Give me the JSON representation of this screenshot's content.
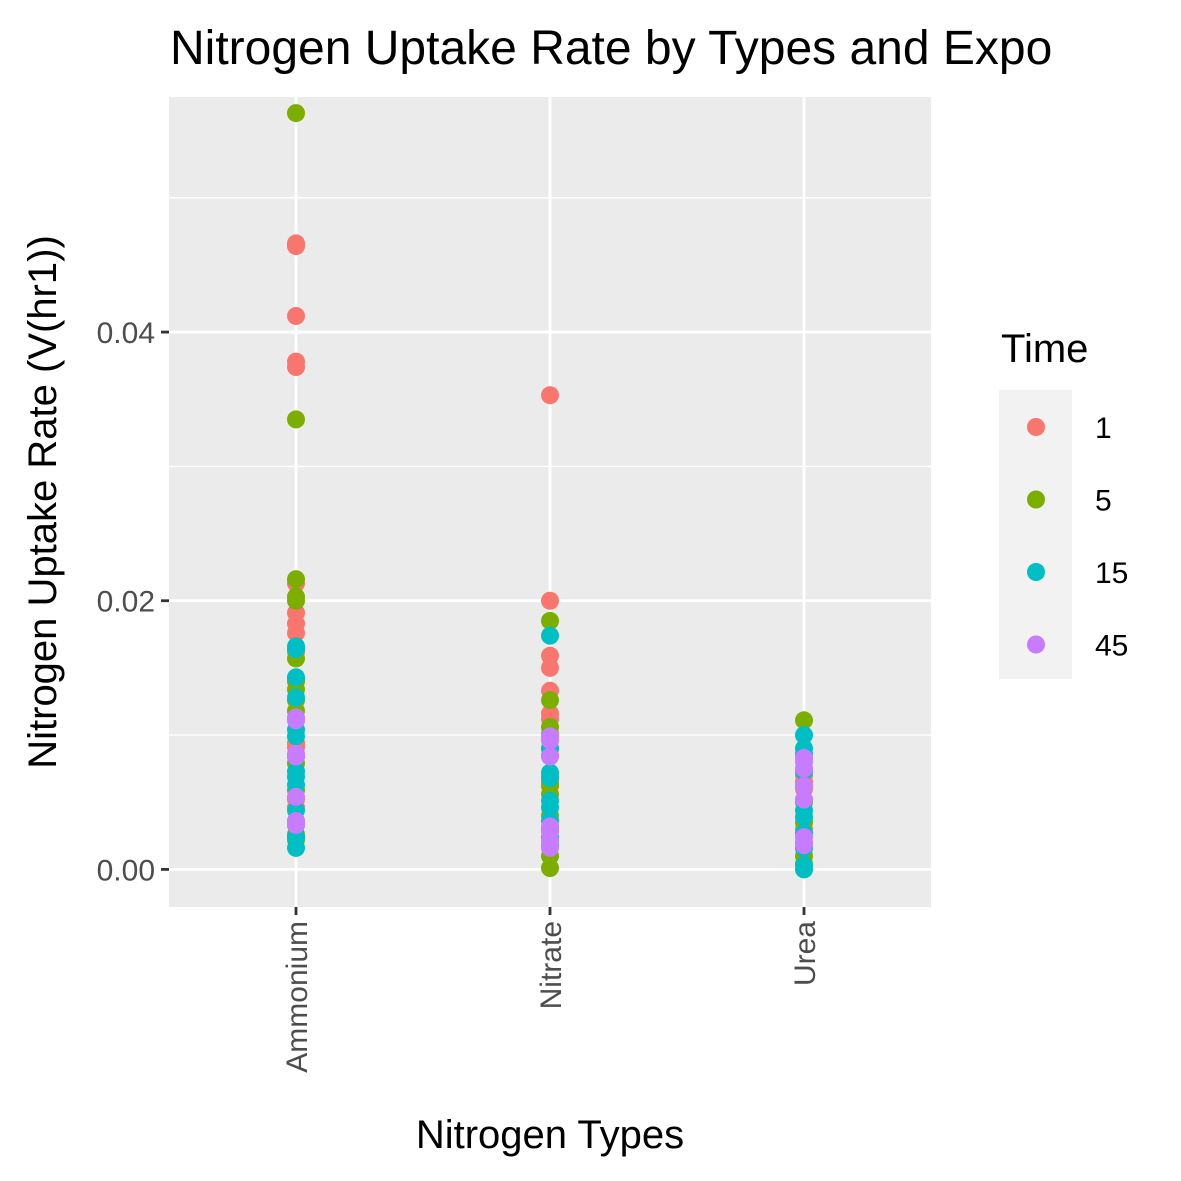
{
  "chart_data": {
    "type": "scatter",
    "title": "Nitrogen Uptake Rate by Types and Expo",
    "xlabel": "Nitrogen Types",
    "ylabel": "Nitrogen Uptake Rate (V(hr1))",
    "categories": [
      "Ammonium",
      "Nitrate",
      "Urea"
    ],
    "y_ticks": [
      0.0,
      0.02,
      0.04
    ],
    "y_tick_labels": [
      "0.00",
      "0.02",
      "0.04"
    ],
    "ylim": [
      -0.0028,
      0.0575
    ],
    "grid": true,
    "legend": {
      "title": "Time",
      "position": "right",
      "entries": [
        "1",
        "5",
        "15",
        "45"
      ]
    },
    "series": [
      {
        "name": "1",
        "color": "#F8766D",
        "points": [
          {
            "x": "Ammonium",
            "y": 0.0466
          },
          {
            "x": "Ammonium",
            "y": 0.0464
          },
          {
            "x": "Ammonium",
            "y": 0.0412
          },
          {
            "x": "Ammonium",
            "y": 0.0378
          },
          {
            "x": "Ammonium",
            "y": 0.0374
          },
          {
            "x": "Ammonium",
            "y": 0.0213
          },
          {
            "x": "Ammonium",
            "y": 0.0191
          },
          {
            "x": "Ammonium",
            "y": 0.0183
          },
          {
            "x": "Ammonium",
            "y": 0.0176
          },
          {
            "x": "Ammonium",
            "y": 0.0162
          },
          {
            "x": "Ammonium",
            "y": 0.0142
          },
          {
            "x": "Ammonium",
            "y": 0.0094
          },
          {
            "x": "Ammonium",
            "y": 0.0091
          },
          {
            "x": "Ammonium",
            "y": 0.0052
          },
          {
            "x": "Ammonium",
            "y": 0.0046
          },
          {
            "x": "Nitrate",
            "y": 0.0353
          },
          {
            "x": "Nitrate",
            "y": 0.02
          },
          {
            "x": "Nitrate",
            "y": 0.0159
          },
          {
            "x": "Nitrate",
            "y": 0.015
          },
          {
            "x": "Nitrate",
            "y": 0.0133
          },
          {
            "x": "Nitrate",
            "y": 0.0116
          },
          {
            "x": "Nitrate",
            "y": 0.0112
          },
          {
            "x": "Nitrate",
            "y": 0.0101
          },
          {
            "x": "Nitrate",
            "y": 0.009
          },
          {
            "x": "Nitrate",
            "y": 0.0085
          },
          {
            "x": "Nitrate",
            "y": 0.0065
          },
          {
            "x": "Nitrate",
            "y": 0.0062
          },
          {
            "x": "Urea",
            "y": 0.007
          },
          {
            "x": "Urea",
            "y": 0.0065
          },
          {
            "x": "Urea",
            "y": 0.006
          },
          {
            "x": "Urea",
            "y": 0.0052
          },
          {
            "x": "Urea",
            "y": 0.003
          },
          {
            "x": "Urea",
            "y": 0.002
          }
        ]
      },
      {
        "name": "5",
        "color": "#7CAE00",
        "points": [
          {
            "x": "Ammonium",
            "y": 0.0563
          },
          {
            "x": "Ammonium",
            "y": 0.0335
          },
          {
            "x": "Ammonium",
            "y": 0.0216
          },
          {
            "x": "Ammonium",
            "y": 0.0203
          },
          {
            "x": "Ammonium",
            "y": 0.02
          },
          {
            "x": "Ammonium",
            "y": 0.0157
          },
          {
            "x": "Ammonium",
            "y": 0.014
          },
          {
            "x": "Ammonium",
            "y": 0.0134
          },
          {
            "x": "Ammonium",
            "y": 0.0126
          },
          {
            "x": "Ammonium",
            "y": 0.0118
          },
          {
            "x": "Ammonium",
            "y": 0.0079
          },
          {
            "x": "Ammonium",
            "y": 0.0059
          },
          {
            "x": "Ammonium",
            "y": 0.0036
          },
          {
            "x": "Ammonium",
            "y": 0.0026
          },
          {
            "x": "Ammonium",
            "y": 0.0022
          },
          {
            "x": "Nitrate",
            "y": 0.0185
          },
          {
            "x": "Nitrate",
            "y": 0.0126
          },
          {
            "x": "Nitrate",
            "y": 0.0106
          },
          {
            "x": "Nitrate",
            "y": 0.0069
          },
          {
            "x": "Nitrate",
            "y": 0.0063
          },
          {
            "x": "Nitrate",
            "y": 0.0056
          },
          {
            "x": "Nitrate",
            "y": 0.004
          },
          {
            "x": "Nitrate",
            "y": 0.003
          },
          {
            "x": "Nitrate",
            "y": 0.001
          },
          {
            "x": "Nitrate",
            "y": 0.0001
          },
          {
            "x": "Urea",
            "y": 0.0111
          },
          {
            "x": "Urea",
            "y": 0.005
          },
          {
            "x": "Urea",
            "y": 0.0035
          },
          {
            "x": "Urea",
            "y": 0.0016
          },
          {
            "x": "Urea",
            "y": 0.001
          },
          {
            "x": "Urea",
            "y": 0.0004
          }
        ]
      },
      {
        "name": "15",
        "color": "#00BFC4",
        "points": [
          {
            "x": "Ammonium",
            "y": 0.0166
          },
          {
            "x": "Ammonium",
            "y": 0.0164
          },
          {
            "x": "Ammonium",
            "y": 0.0143
          },
          {
            "x": "Ammonium",
            "y": 0.0128
          },
          {
            "x": "Ammonium",
            "y": 0.0104
          },
          {
            "x": "Ammonium",
            "y": 0.0099
          },
          {
            "x": "Ammonium",
            "y": 0.0084
          },
          {
            "x": "Ammonium",
            "y": 0.0073
          },
          {
            "x": "Ammonium",
            "y": 0.0069
          },
          {
            "x": "Ammonium",
            "y": 0.0063
          },
          {
            "x": "Ammonium",
            "y": 0.0044
          },
          {
            "x": "Ammonium",
            "y": 0.0033
          },
          {
            "x": "Ammonium",
            "y": 0.0024
          },
          {
            "x": "Ammonium",
            "y": 0.0016
          },
          {
            "x": "Nitrate",
            "y": 0.0174
          },
          {
            "x": "Nitrate",
            "y": 0.009
          },
          {
            "x": "Nitrate",
            "y": 0.0072
          },
          {
            "x": "Nitrate",
            "y": 0.0068
          },
          {
            "x": "Nitrate",
            "y": 0.0051
          },
          {
            "x": "Nitrate",
            "y": 0.0046
          },
          {
            "x": "Nitrate",
            "y": 0.0036
          },
          {
            "x": "Nitrate",
            "y": 0.0024
          },
          {
            "x": "Nitrate",
            "y": 0.0018
          },
          {
            "x": "Urea",
            "y": 0.01
          },
          {
            "x": "Urea",
            "y": 0.009
          },
          {
            "x": "Urea",
            "y": 0.0086
          },
          {
            "x": "Urea",
            "y": 0.0073
          },
          {
            "x": "Urea",
            "y": 0.0044
          },
          {
            "x": "Urea",
            "y": 0.0039
          },
          {
            "x": "Urea",
            "y": 0.0027
          },
          {
            "x": "Urea",
            "y": 0.0016
          },
          {
            "x": "Urea",
            "y": 0.0003
          },
          {
            "x": "Urea",
            "y": 0.0
          }
        ]
      },
      {
        "name": "45",
        "color": "#C77CFF",
        "points": [
          {
            "x": "Ammonium",
            "y": 0.0113
          },
          {
            "x": "Ammonium",
            "y": 0.0111
          },
          {
            "x": "Ammonium",
            "y": 0.0086
          },
          {
            "x": "Ammonium",
            "y": 0.0084
          },
          {
            "x": "Ammonium",
            "y": 0.0054
          },
          {
            "x": "Ammonium",
            "y": 0.0036
          },
          {
            "x": "Ammonium",
            "y": 0.0033
          },
          {
            "x": "Nitrate",
            "y": 0.0099
          },
          {
            "x": "Nitrate",
            "y": 0.0096
          },
          {
            "x": "Nitrate",
            "y": 0.0084
          },
          {
            "x": "Nitrate",
            "y": 0.0032
          },
          {
            "x": "Nitrate",
            "y": 0.0028
          },
          {
            "x": "Nitrate",
            "y": 0.0021
          },
          {
            "x": "Nitrate",
            "y": 0.0016
          },
          {
            "x": "Urea",
            "y": 0.0083
          },
          {
            "x": "Urea",
            "y": 0.008
          },
          {
            "x": "Urea",
            "y": 0.0075
          },
          {
            "x": "Urea",
            "y": 0.0062
          },
          {
            "x": "Urea",
            "y": 0.0052
          },
          {
            "x": "Urea",
            "y": 0.0024
          },
          {
            "x": "Urea",
            "y": 0.0018
          }
        ]
      }
    ]
  }
}
